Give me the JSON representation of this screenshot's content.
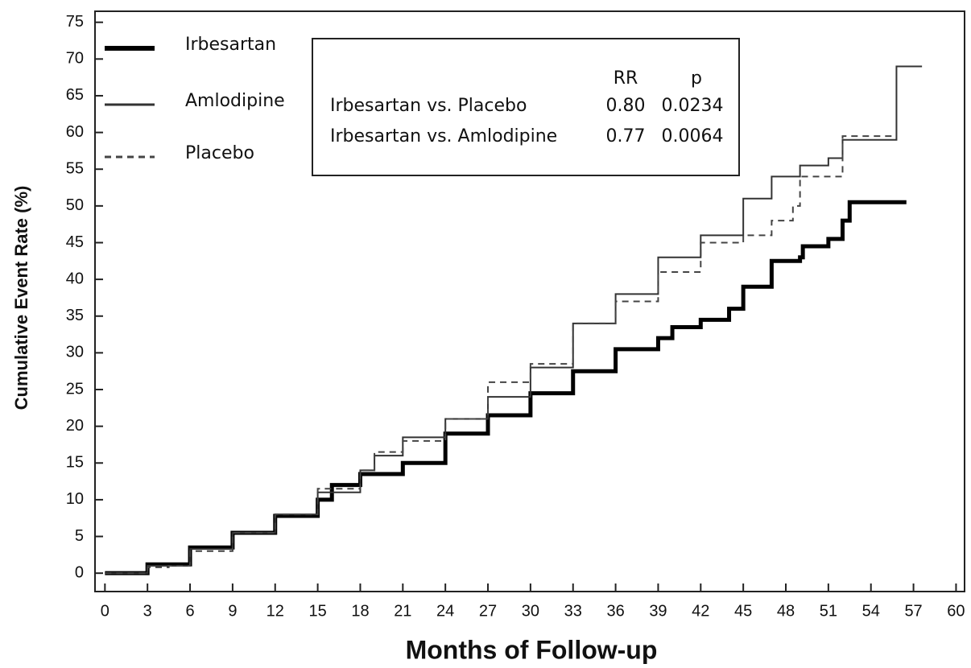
{
  "chart_data": {
    "type": "line",
    "xlabel": "Months of Follow-up",
    "ylabel": "Cumulative Event Rate (%)",
    "xlim": [
      -0.7,
      60.6
    ],
    "ylim": [
      -2.5,
      76.5
    ],
    "xticks": [
      0,
      3,
      6,
      9,
      12,
      15,
      18,
      21,
      24,
      27,
      30,
      33,
      36,
      39,
      42,
      45,
      48,
      51,
      54,
      57,
      60
    ],
    "yticks": [
      0,
      5,
      10,
      15,
      20,
      25,
      30,
      35,
      40,
      45,
      50,
      55,
      60,
      65,
      70,
      75
    ],
    "step": true,
    "series": [
      {
        "name": "Irbesartan",
        "color": "#000000",
        "width": 5,
        "dash": "none",
        "x": [
          0,
          3,
          6,
          9,
          12,
          15,
          16,
          18,
          21,
          24,
          27,
          30,
          33,
          36,
          39,
          40,
          42,
          44,
          45,
          47,
          49,
          49.2,
          51,
          52,
          52.5,
          56.5
        ],
        "values": [
          0,
          1.2,
          3.5,
          5.5,
          7.8,
          10,
          12,
          13.5,
          15,
          19,
          21.5,
          24.5,
          27.5,
          30.5,
          32,
          33.5,
          34.5,
          36,
          39,
          42.5,
          43,
          44.5,
          45.5,
          48,
          50.5,
          50.5
        ]
      },
      {
        "name": "Amlodipine",
        "color": "#333333",
        "width": 2,
        "dash": "none",
        "x": [
          0,
          3,
          6,
          9,
          12,
          15,
          18,
          19,
          21,
          24,
          27,
          30,
          33,
          36,
          39,
          42,
          45,
          47,
          49,
          51,
          52,
          55.7,
          55.8,
          57.6
        ],
        "values": [
          0,
          1,
          3.3,
          5.5,
          8,
          11,
          14,
          16,
          18.5,
          21,
          24,
          28,
          34,
          38,
          43,
          46,
          51,
          54,
          55.5,
          56.5,
          59,
          59,
          69,
          69
        ]
      },
      {
        "name": "Placebo",
        "color": "#444444",
        "width": 2,
        "dash": "8 6",
        "x": [
          0,
          3,
          4.5,
          6,
          9,
          12,
          15,
          18,
          19,
          21,
          24,
          27,
          30,
          33,
          36,
          39,
          42,
          45,
          47,
          48.5,
          49,
          51.5,
          52,
          55.7
        ],
        "values": [
          0,
          0.8,
          1,
          3,
          5.5,
          8,
          11.5,
          14,
          16.5,
          18,
          21,
          26,
          28.5,
          34,
          37,
          41,
          45,
          46,
          48,
          50,
          54,
          54,
          59.5,
          59.5
        ]
      }
    ],
    "stats_table": {
      "headers": [
        "RR",
        "p"
      ],
      "rows": [
        [
          "Irbesartan vs. Placebo",
          "0.80",
          "0.0234"
        ],
        [
          "Irbesartan vs. Amlodipine",
          "0.77",
          "0.0064"
        ]
      ]
    }
  }
}
